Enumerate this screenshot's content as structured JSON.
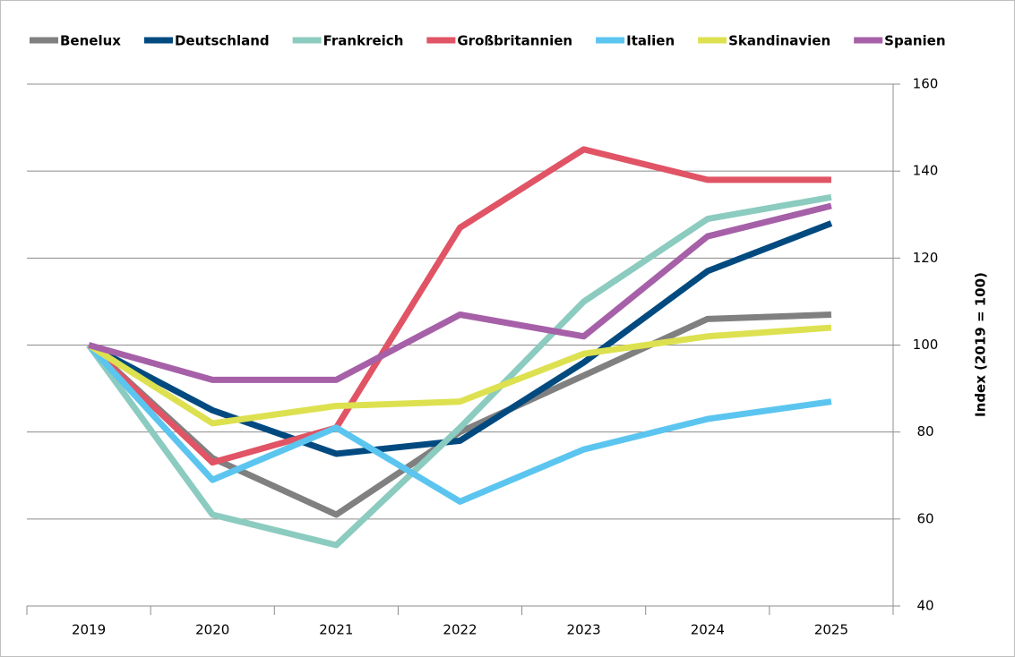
{
  "chart_data": {
    "type": "line",
    "categories": [
      "2019",
      "2020",
      "2021",
      "2022",
      "2023",
      "2024",
      "2025"
    ],
    "series": [
      {
        "name": "Benelux",
        "color": "#808080",
        "values": [
          100,
          74,
          61,
          80,
          93,
          106,
          107
        ]
      },
      {
        "name": "Deutschland",
        "color": "#004a80",
        "values": [
          100,
          85,
          75,
          78,
          96,
          117,
          128
        ]
      },
      {
        "name": "Frankreich",
        "color": "#8ccbbf",
        "values": [
          100,
          61,
          54,
          81,
          110,
          129,
          134
        ]
      },
      {
        "name": "Großbritannien",
        "color": "#e05465",
        "values": [
          100,
          73,
          81,
          127,
          145,
          138,
          138
        ]
      },
      {
        "name": "Italien",
        "color": "#5bc5f0",
        "values": [
          100,
          69,
          81,
          64,
          76,
          83,
          87
        ]
      },
      {
        "name": "Skandinavien",
        "color": "#dde150",
        "values": [
          100,
          82,
          86,
          87,
          98,
          102,
          104
        ]
      },
      {
        "name": "Spanien",
        "color": "#a660a8",
        "values": [
          100,
          92,
          92,
          107,
          102,
          125,
          132
        ]
      }
    ],
    "y_label": "Index (2019 = 100)",
    "ylim": [
      40,
      160
    ],
    "yticks": [
      40,
      60,
      80,
      100,
      120,
      140,
      160
    ],
    "y_axis_side": "right",
    "grid": true,
    "legend": "top"
  }
}
